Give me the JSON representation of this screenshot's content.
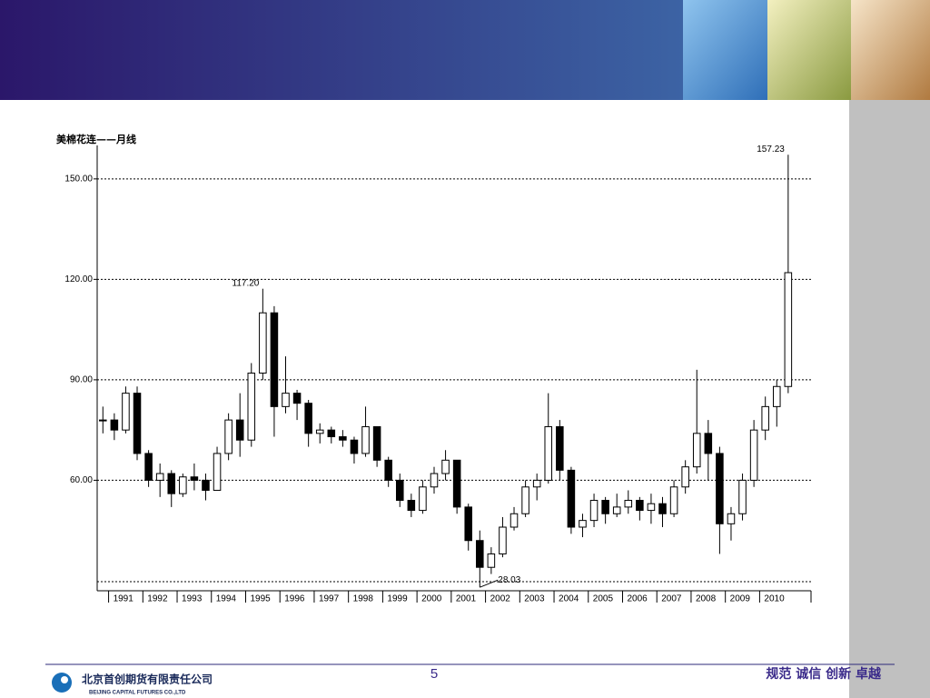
{
  "slide": {
    "page_number": 5,
    "company_cn": "北京首创期货有限责任公司",
    "company_en": "BEIJING CAPITAL FUTURES CO.,LTD",
    "slogan": "规范 诚信 创新 卓越"
  },
  "chart_data": {
    "type": "candlestick",
    "title": "美棉花连——月线",
    "categories": [
      null,
      "1991",
      null,
      null,
      "1992",
      null,
      null,
      "1993",
      null,
      null,
      "1994",
      null,
      null,
      "1995",
      null,
      null,
      "1996",
      null,
      null,
      "1997",
      null,
      null,
      "1998",
      null,
      null,
      "1999",
      null,
      null,
      "2000",
      null,
      null,
      "2001",
      null,
      null,
      "2002",
      null,
      null,
      "2003",
      null,
      null,
      "2004",
      null,
      null,
      "2005",
      null,
      null,
      "2006",
      null,
      null,
      "2007",
      null,
      null,
      "2008",
      null,
      null,
      "2009",
      null,
      null,
      "2010",
      null,
      null
    ],
    "open": [
      78,
      78,
      75,
      86,
      68,
      60,
      62,
      56,
      61,
      60,
      57,
      68,
      78,
      72,
      92,
      110,
      82,
      86,
      83,
      74,
      75,
      73,
      72,
      68,
      76,
      66,
      60,
      54,
      51,
      58,
      62,
      66,
      52,
      42,
      34,
      38,
      46,
      50,
      58,
      60,
      76,
      63,
      46,
      48,
      54,
      50,
      52,
      54,
      51,
      53,
      50,
      58,
      64,
      74,
      68,
      47,
      50,
      60,
      75,
      82,
      88
    ],
    "high": [
      82,
      80,
      88,
      88,
      69,
      65,
      63,
      62,
      65,
      62,
      70,
      80,
      86,
      95,
      117.2,
      112,
      97,
      87,
      84,
      77,
      76,
      75,
      73,
      82,
      76,
      67,
      62,
      56,
      60,
      64,
      69,
      66,
      53,
      45,
      40,
      49,
      52,
      60,
      62,
      86,
      78,
      64,
      50,
      56,
      55,
      56,
      57,
      55,
      56,
      55,
      60,
      66,
      93,
      78,
      70,
      52,
      62,
      78,
      85,
      90,
      157.23
    ],
    "low": [
      74,
      72,
      74,
      66,
      58,
      55,
      52,
      55,
      57,
      54,
      57,
      66,
      67,
      70,
      90,
      73,
      80,
      78,
      70,
      71,
      71,
      70,
      65,
      67,
      64,
      58,
      52,
      49,
      50,
      56,
      60,
      50,
      39,
      28.03,
      32,
      37,
      45,
      49,
      54,
      59,
      60,
      44,
      43,
      46,
      47,
      49,
      50,
      48,
      47,
      46,
      49,
      56,
      62,
      60,
      38,
      42,
      48,
      58,
      72,
      76,
      86
    ],
    "close": [
      78,
      75,
      86,
      68,
      60,
      62,
      56,
      61,
      60,
      57,
      68,
      78,
      72,
      92,
      110,
      82,
      86,
      83,
      74,
      75,
      73,
      72,
      68,
      76,
      66,
      60,
      54,
      51,
      58,
      62,
      66,
      52,
      42,
      34,
      38,
      46,
      50,
      58,
      60,
      76,
      63,
      46,
      48,
      54,
      50,
      52,
      54,
      51,
      53,
      50,
      58,
      64,
      74,
      68,
      47,
      50,
      60,
      75,
      82,
      88,
      122
    ],
    "up_color": "#ffffff",
    "down_color": "#000000",
    "edge_color": "#000000",
    "ylim": [
      27,
      160
    ],
    "yticks": [
      {
        "value": 60,
        "label": "60.00"
      },
      {
        "value": 90,
        "label": "90.00"
      },
      {
        "value": 120,
        "label": "120.00"
      },
      {
        "value": 150,
        "label": "150.00"
      }
    ],
    "grid": true,
    "annotations": [
      {
        "text": "117.20",
        "value": 117.2
      },
      {
        "text": "157.23",
        "value": 157.23
      },
      {
        "text": "28.03",
        "value": 28.03
      }
    ]
  }
}
